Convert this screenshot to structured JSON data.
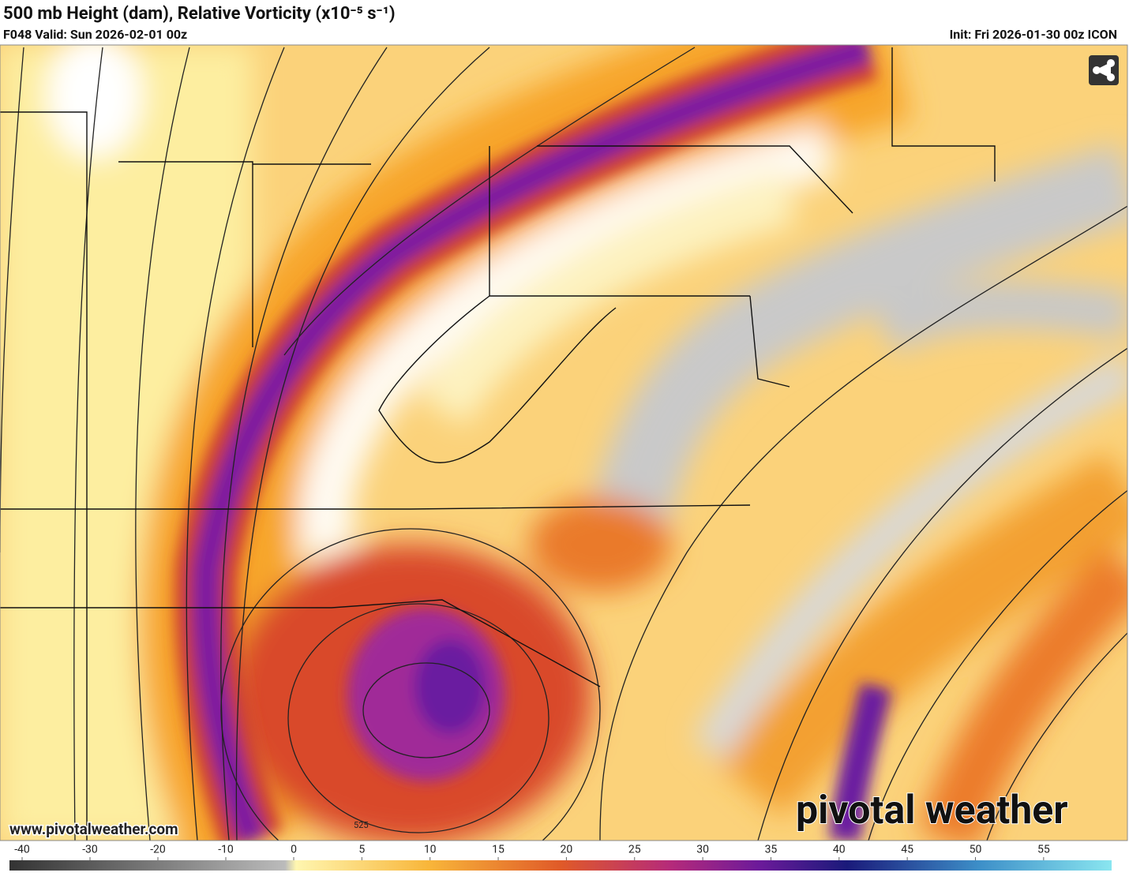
{
  "header": {
    "title": "500 mb Height (dam), Relative Vorticity (x10⁻⁵ s⁻¹)",
    "valid": "F048 Valid: Sun 2026-02-01 00z",
    "init": "Init: Fri 2026-01-30 00z ICON"
  },
  "map": {
    "contour_label": "525",
    "watermark": "www.pivotalweather.com",
    "logo": "pivotal weather"
  },
  "colorbar": {
    "ticks": [
      -40,
      -30,
      -20,
      -10,
      0,
      5,
      10,
      15,
      20,
      25,
      30,
      35,
      40,
      45,
      50,
      55
    ]
  }
}
